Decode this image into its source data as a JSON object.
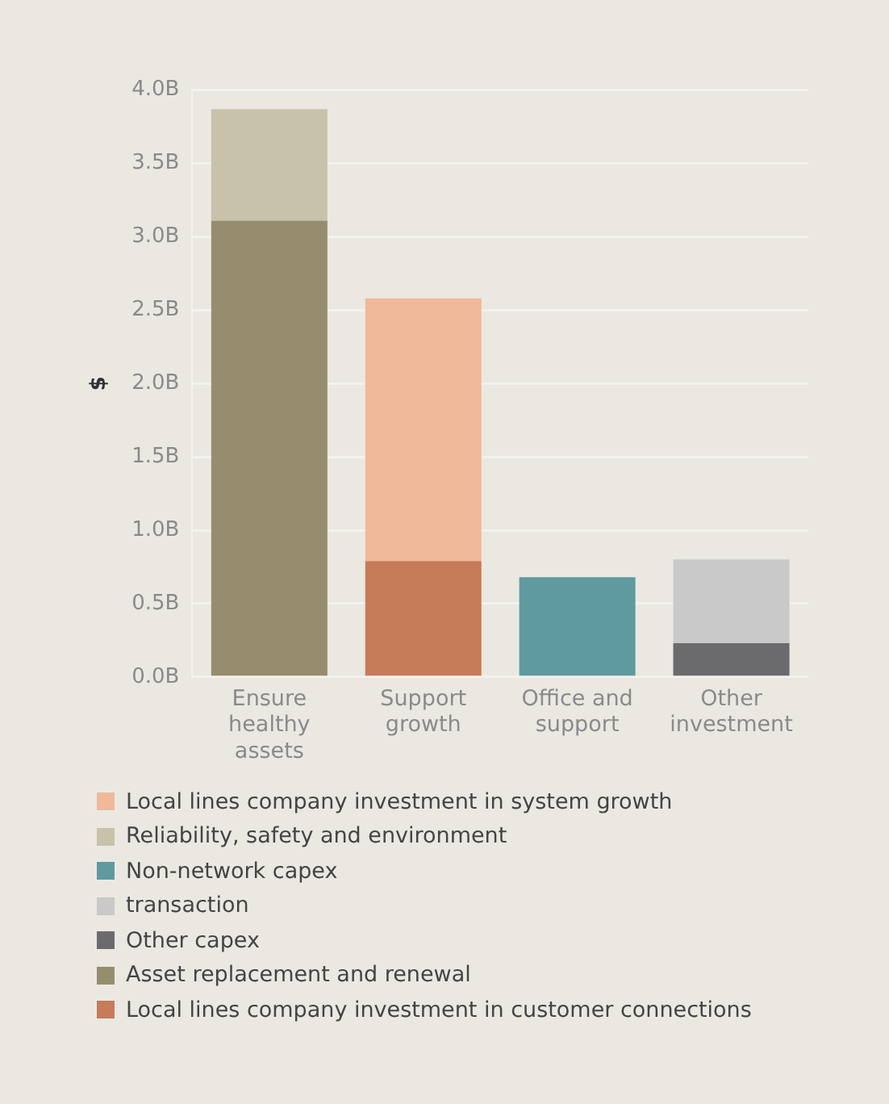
{
  "chart_data": {
    "type": "bar",
    "stacked": true,
    "ylabel": "$",
    "categories": [
      "Ensure healthy assets",
      "Support growth",
      "Office and support",
      "Other investment"
    ],
    "series": [
      {
        "name": "Local lines company investment in customer connections",
        "color": "#c67b59",
        "values": [
          null,
          0.79,
          null,
          null
        ]
      },
      {
        "name": "Asset replacement and renewal",
        "color": "#958d6e",
        "values": [
          3.11,
          null,
          null,
          null
        ]
      },
      {
        "name": "Other capex",
        "color": "#6b6b6d",
        "values": [
          null,
          null,
          null,
          0.23
        ]
      },
      {
        "name": "transaction",
        "color": "#c9c9c9",
        "values": [
          null,
          null,
          null,
          0.57
        ]
      },
      {
        "name": "Non-network capex",
        "color": "#5f9a9e",
        "values": [
          null,
          null,
          0.68,
          null
        ]
      },
      {
        "name": "Reliability, safety and environment",
        "color": "#c8c2ab",
        "values": [
          0.76,
          null,
          null,
          null
        ]
      },
      {
        "name": "Local lines company investment in system growth",
        "color": "#efb99a",
        "values": [
          null,
          1.79,
          null,
          null
        ]
      }
    ],
    "ylim": [
      0,
      4.0
    ],
    "yticks": [
      {
        "value": 0,
        "label": "0.0B"
      },
      {
        "value": 0.5,
        "label": "0.5B"
      },
      {
        "value": 1,
        "label": "1.0B"
      },
      {
        "value": 1.5,
        "label": "1.5B"
      },
      {
        "value": 2,
        "label": "2.0B"
      },
      {
        "value": 2.5,
        "label": "2.5B"
      },
      {
        "value": 3,
        "label": "3.0B"
      },
      {
        "value": 3.5,
        "label": "3.5B"
      },
      {
        "value": 4,
        "label": "4.0B"
      }
    ],
    "grid": "y",
    "legend": "bottom"
  }
}
